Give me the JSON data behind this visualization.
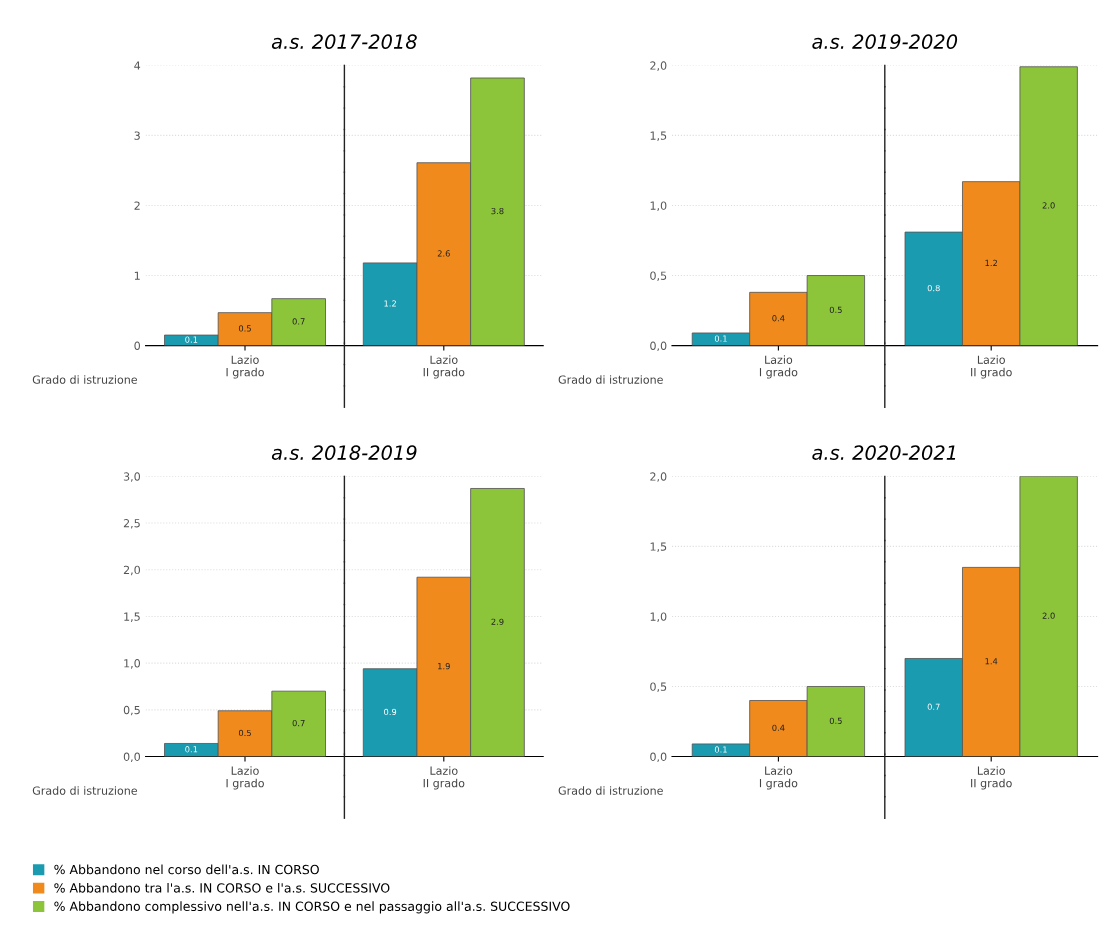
{
  "chart_data": [
    {
      "type": "bar",
      "title": "a.s. 2017-2018",
      "categories": [
        "Lazio\nI grado",
        "Lazio\nII grado"
      ],
      "annotations": [
        "Grado di istruzione"
      ],
      "ylim": [
        0,
        4
      ],
      "yticks": [
        0,
        1,
        2,
        3,
        4
      ],
      "grid": "y",
      "series": [
        {
          "color": "#1a9bb0",
          "values": [
            0.15,
            1.18
          ],
          "value_labels": [
            "0.1",
            "1.2"
          ]
        },
        {
          "color": "#f08a1c",
          "values": [
            0.47,
            2.61
          ],
          "value_labels": [
            "0.5",
            "2.6"
          ]
        },
        {
          "color": "#8cc43a",
          "values": [
            0.67,
            3.82
          ],
          "value_labels": [
            "0.7",
            "3.8"
          ]
        }
      ]
    },
    {
      "type": "bar",
      "title": "a.s. 2019-2020",
      "categories": [
        "Lazio\nI grado",
        "Lazio\nII grado"
      ],
      "annotations": [
        "Grado di istruzione"
      ],
      "ylim": [
        0,
        2.0
      ],
      "yticks": [
        {
          "value": 0,
          "label": "0,0"
        },
        {
          "value": 0.5,
          "label": "0,5"
        },
        {
          "value": 1,
          "label": "1,0"
        },
        {
          "value": 1.5,
          "label": "1,5"
        },
        {
          "value": 2,
          "label": "2,0"
        }
      ],
      "grid": "y",
      "series": [
        {
          "color": "#1a9bb0",
          "values": [
            0.09,
            0.81
          ],
          "value_labels": [
            "0.1",
            "0.8"
          ]
        },
        {
          "color": "#f08a1c",
          "values": [
            0.38,
            1.17
          ],
          "value_labels": [
            "0.4",
            "1.2"
          ]
        },
        {
          "color": "#8cc43a",
          "values": [
            0.5,
            1.99
          ],
          "value_labels": [
            "0.5",
            "2.0"
          ]
        }
      ]
    },
    {
      "type": "bar",
      "title": "a.s. 2018-2019",
      "categories": [
        "Lazio\nI grado",
        "Lazio\nII grado"
      ],
      "annotations": [
        "Grado di istruzione"
      ],
      "ylim": [
        0,
        3.0
      ],
      "yticks": [
        {
          "value": 0,
          "label": "0,0"
        },
        {
          "value": 0.5,
          "label": "0,5"
        },
        {
          "value": 1,
          "label": "1,0"
        },
        {
          "value": 1.5,
          "label": "1,5"
        },
        {
          "value": 2,
          "label": "2,0"
        },
        {
          "value": 2.5,
          "label": "2,5"
        },
        {
          "value": 3,
          "label": "3,0"
        }
      ],
      "grid": "y",
      "series": [
        {
          "color": "#1a9bb0",
          "values": [
            0.14,
            0.94
          ],
          "value_labels": [
            "0.1",
            "0.9"
          ]
        },
        {
          "color": "#f08a1c",
          "values": [
            0.49,
            1.92
          ],
          "value_labels": [
            "0.5",
            "1.9"
          ]
        },
        {
          "color": "#8cc43a",
          "values": [
            0.7,
            2.87
          ],
          "value_labels": [
            "0.7",
            "2.9"
          ]
        }
      ]
    },
    {
      "type": "bar",
      "title": "a.s. 2020-2021",
      "categories": [
        "Lazio\nI grado",
        "Lazio\nII grado"
      ],
      "annotations": [
        "Grado di istruzione"
      ],
      "ylim": [
        0,
        2.0
      ],
      "yticks": [
        {
          "value": 0,
          "label": "0,0"
        },
        {
          "value": 0.5,
          "label": "0,5"
        },
        {
          "value": 1,
          "label": "1,0"
        },
        {
          "value": 1.5,
          "label": "1,5"
        },
        {
          "value": 2,
          "label": "2,0"
        }
      ],
      "grid": "y",
      "legend": "bottom",
      "series": [
        {
          "name": "% Abbandono nel corso dell'a.s. IN CORSO",
          "color": "#1a9bb0",
          "values": [
            0.09,
            0.7
          ],
          "value_labels": [
            "0.1",
            "0.7"
          ]
        },
        {
          "name": "% Abbandono tra l'a.s. IN CORSO e l'a.s. SUCCESSIVO",
          "color": "#f08a1c",
          "values": [
            0.4,
            1.35
          ],
          "value_labels": [
            "0.4",
            "1.4"
          ]
        },
        {
          "name": "% Abbandono complessivo nell'a.s. IN CORSO e nel passaggio all'a.s. SUCCESSIVO",
          "color": "#8cc43a",
          "values": [
            0.5,
            2.0
          ],
          "value_labels": [
            "0.5",
            "2.0"
          ]
        }
      ]
    }
  ]
}
